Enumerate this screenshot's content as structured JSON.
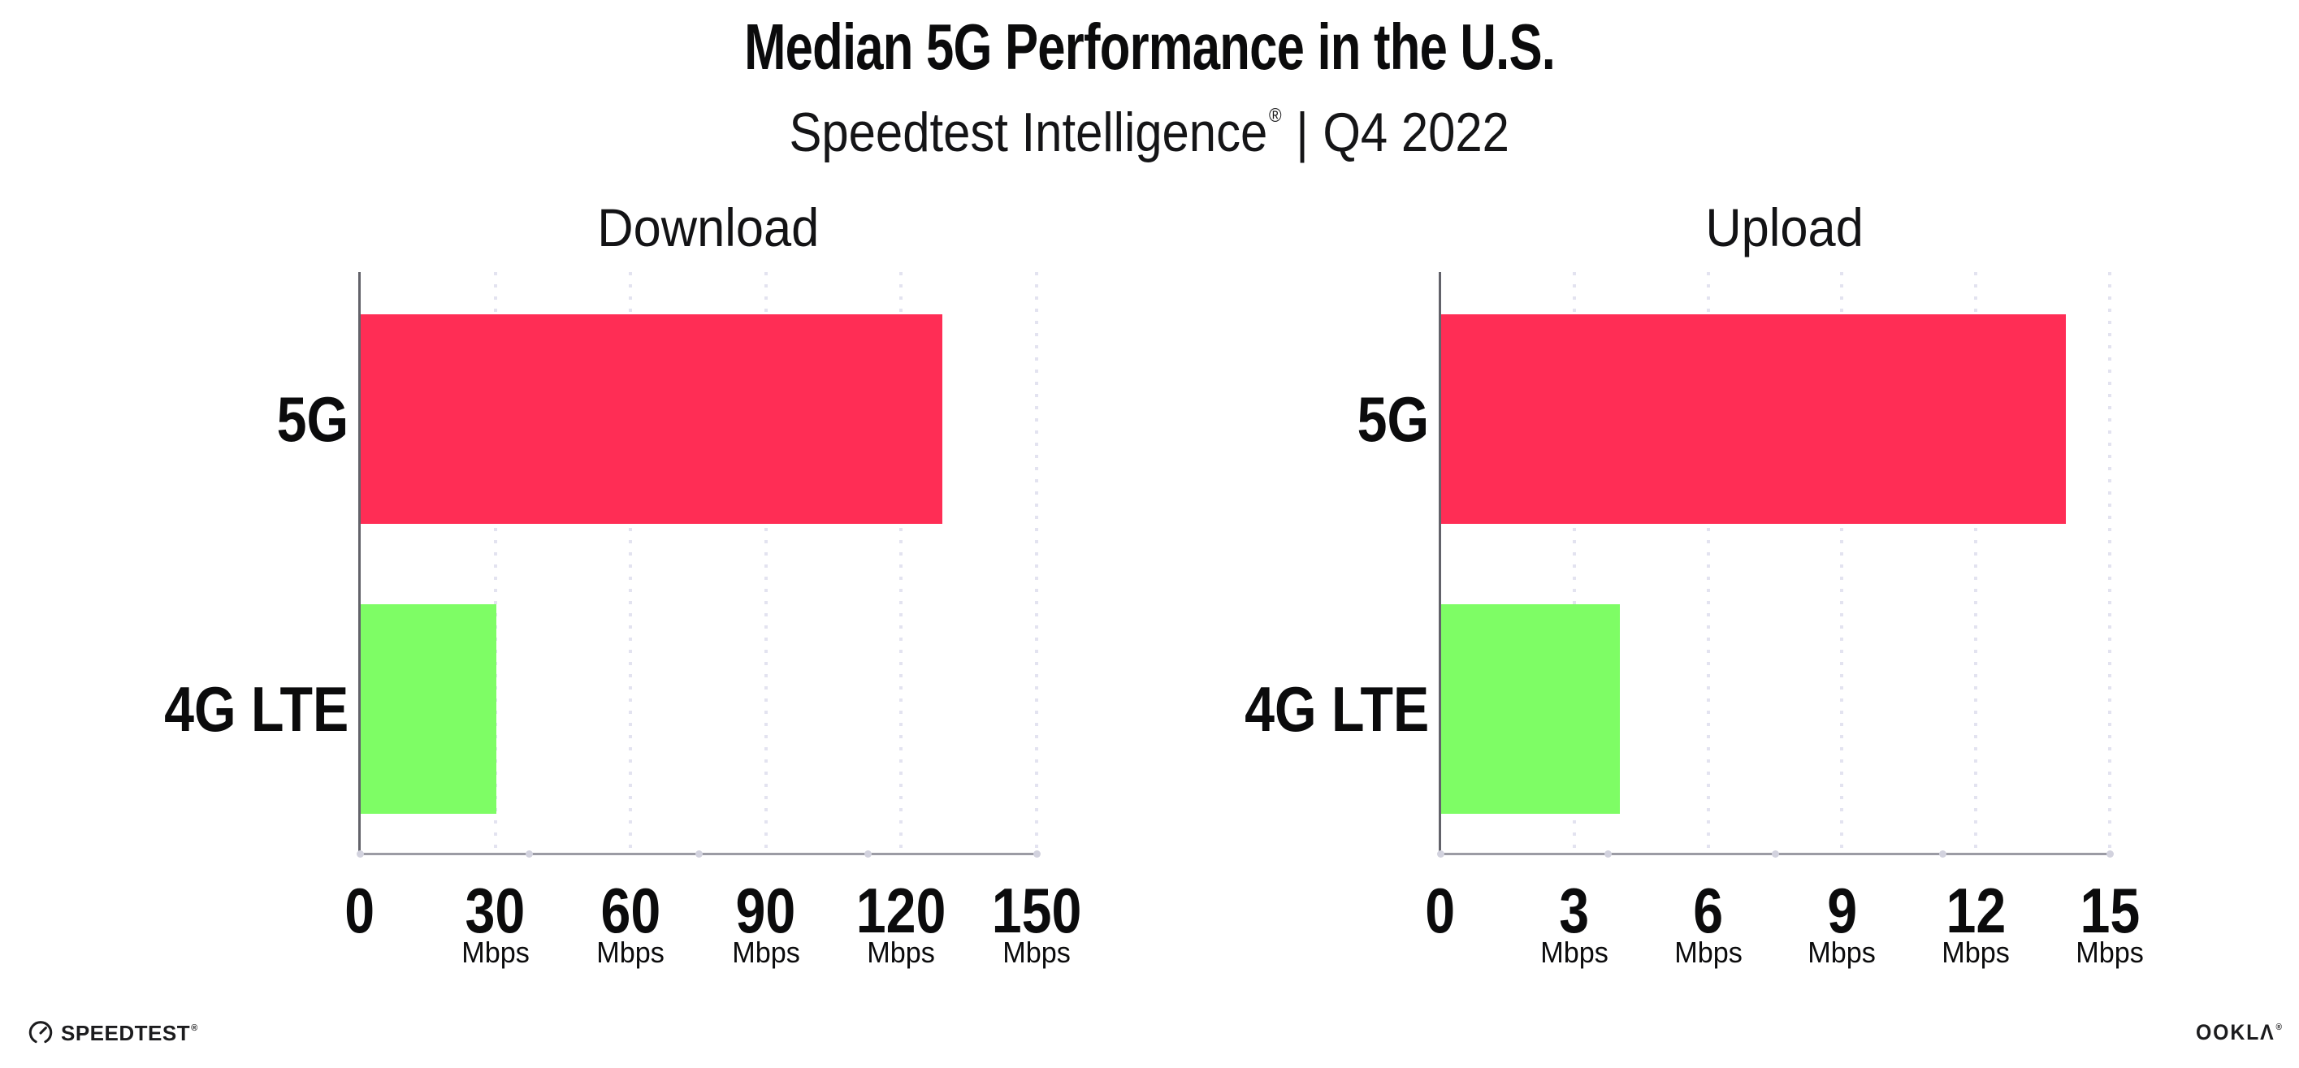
{
  "header": {
    "title": "Median 5G Performance in the U.S.",
    "subtitle": {
      "brand": "Speedtest Intelligence",
      "registered": "®",
      "separator": "|",
      "period": "Q4 2022"
    }
  },
  "chart_data": [
    {
      "type": "bar",
      "orientation": "horizontal",
      "title": "Download",
      "categories": [
        "5G",
        "4G LTE"
      ],
      "values": [
        129,
        30
      ],
      "unit": "Mbps",
      "xlim": [
        0,
        150
      ],
      "xticks": [
        0,
        30,
        60,
        90,
        120,
        150
      ],
      "xtick_unit_label": "Mbps",
      "bar_colors": [
        "#ff2d55",
        "#7efd65"
      ],
      "grid": "vertical-dotted",
      "legend": "none"
    },
    {
      "type": "bar",
      "orientation": "horizontal",
      "title": "Upload",
      "categories": [
        "5G",
        "4G LTE"
      ],
      "values": [
        14,
        4
      ],
      "unit": "Mbps",
      "xlim": [
        0,
        15
      ],
      "xticks": [
        0,
        3,
        6,
        9,
        12,
        15
      ],
      "xtick_unit_label": "Mbps",
      "bar_colors": [
        "#ff2d55",
        "#7efd65"
      ],
      "grid": "vertical-dotted",
      "legend": "none"
    }
  ],
  "footer": {
    "speedtest_wordmark": "SPEEDTEST",
    "speedtest_registered": "®",
    "ookla_wordmark": "OOKLΛ",
    "ookla_registered": "®"
  },
  "colors": {
    "bar_5g": "#ff2d55",
    "bar_4g_lte": "#7efd65",
    "gridline": "#e3e3f0",
    "y_axis": "#62626a",
    "x_axis": "#9b9ba4",
    "text": "#0b0b0c",
    "background": "#ffffff"
  }
}
